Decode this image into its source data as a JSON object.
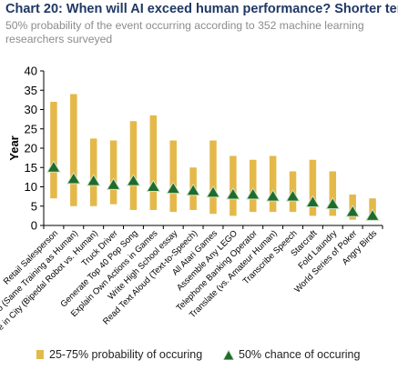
{
  "header": {
    "title": "Chart 20: When will AI exceed human performance? Shorter term",
    "subtitle": "50% probability of the event occurring according to 352 machine learning researchers surveyed"
  },
  "chart_data": {
    "type": "bar",
    "ylabel": "Year",
    "xlabel": "",
    "ylim": [
      0,
      40
    ],
    "yticks": [
      0,
      5,
      10,
      15,
      20,
      25,
      30,
      35,
      40
    ],
    "grid": false,
    "legend_position": "bottom",
    "categories": [
      "Retail Salesperson",
      "Go (Same Training as Human)",
      "Race in City (Bipedal Robot vs. Human)",
      "Truck Driver",
      "Generate Top 40 Pop Song",
      "Explain Own Actions in Games",
      "Write High School essay",
      "Read Text Aloud (Text-to-Speech)",
      "All Atari Games",
      "Assemble Any LEGO",
      "Telephone Banking Operator",
      "Translate (vs. Amateur Human)",
      "Transcribe Speech",
      "Starcraft",
      "Fold Laundry",
      "World Series of Poker",
      "Angry Birds"
    ],
    "series": [
      {
        "name": "25-75% probability of occuring",
        "low": [
          7,
          5,
          5,
          5.5,
          4,
          4,
          3.5,
          4,
          3,
          2.5,
          3.5,
          3.5,
          3.5,
          2.5,
          2.5,
          1.5,
          1.5
        ],
        "high": [
          32,
          34,
          22.5,
          22,
          27,
          28.5,
          22,
          15,
          22,
          18,
          17,
          18,
          14,
          17,
          14,
          8,
          7
        ],
        "color": "#e4b94a"
      },
      {
        "name": "50% chance of occuring",
        "values": [
          15,
          12,
          11.5,
          10.5,
          11.5,
          10,
          9.5,
          9,
          8.5,
          8,
          8,
          7.5,
          7.5,
          6,
          5.5,
          3.5,
          2.5
        ],
        "color": "#1f6b2c"
      }
    ]
  },
  "legend": {
    "range_label": "25-75% probability of occuring",
    "median_label": "50% chance of occuring"
  }
}
